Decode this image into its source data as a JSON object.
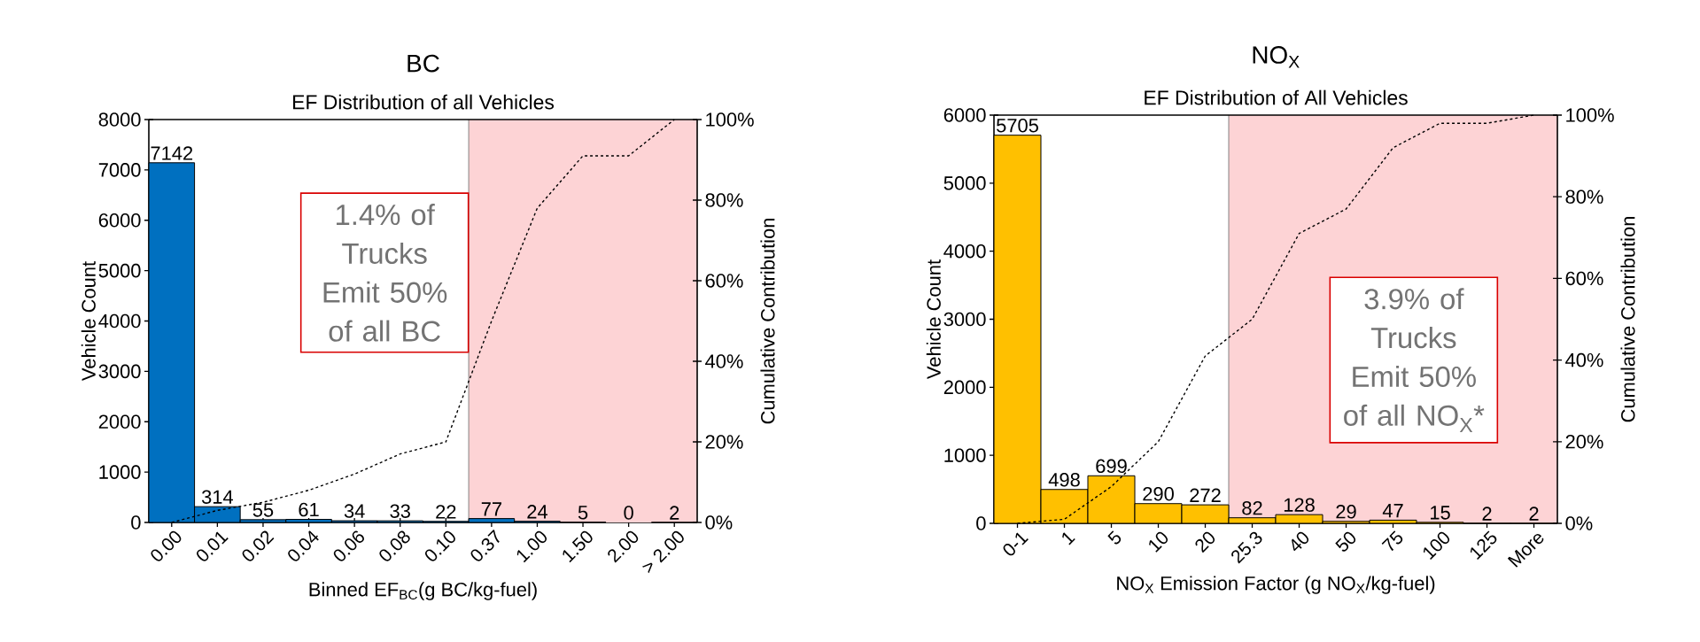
{
  "chart_data": [
    {
      "type": "bar",
      "title": "BC",
      "subtitle": "EF Distribution of all Vehicles",
      "xlabel": "Binned EF$_{BC}$(g BC/kg-fuel)",
      "ylabel": "Vehicle Count",
      "y2label": "Cumulative Contribution",
      "categories": [
        "0.00",
        "0.01",
        "0.02",
        "0.04",
        "0.06",
        "0.08",
        "0.10",
        "0.37",
        "1.00",
        "1.50",
        "2.00",
        "> 2.00"
      ],
      "series": [
        {
          "color": "#0070c0",
          "data_labels": true,
          "values": [
            7142,
            314,
            55,
            61,
            34,
            33,
            22,
            77,
            24,
            5,
            0,
            2
          ]
        },
        {
          "type": "line",
          "axis": "y2",
          "color": "#000000",
          "line_style": "dashed",
          "marker": "none",
          "values": [
            0,
            3,
            5,
            8,
            12,
            17,
            20,
            50,
            78,
            91,
            91,
            100
          ]
        }
      ],
      "ylim": [
        0,
        8000
      ],
      "yticks": [
        0,
        1000,
        2000,
        3000,
        4000,
        5000,
        6000,
        7000,
        8000
      ],
      "y2lim": [
        0,
        100
      ],
      "y2ticks": [
        {
          "value": 0,
          "label": "0%"
        },
        {
          "value": 20,
          "label": "20%"
        },
        {
          "value": 40,
          "label": "40%"
        },
        {
          "value": 60,
          "label": "60%"
        },
        {
          "value": 80,
          "label": "80%"
        },
        {
          "value": 100,
          "label": "100%"
        }
      ],
      "bands": [
        {
          "axis": "x",
          "from": "0.37",
          "to": "> 2.00",
          "color": "#fdd3d5"
        }
      ],
      "annotations": [
        "1.4% of Trucks Emit 50% of all BC"
      ]
    },
    {
      "type": "bar",
      "title": "NO$_{X}$",
      "subtitle": "EF Distribution of All Vehicles",
      "xlabel": "NO$_{X}$ Emission Factor (g NO$_{X}$/kg-fuel)",
      "ylabel": "Vehicle Count",
      "y2label": "Cumulative Contribution",
      "categories": [
        "0-1",
        "1",
        "5",
        "10",
        "20",
        "25.3",
        "40",
        "50",
        "75",
        "100",
        "125",
        "More"
      ],
      "series": [
        {
          "color": "#ffc000",
          "data_labels": true,
          "values": [
            5705,
            498,
            699,
            290,
            272,
            82,
            128,
            29,
            47,
            15,
            2,
            2
          ]
        },
        {
          "type": "line",
          "axis": "y2",
          "color": "#000000",
          "line_style": "dashed",
          "marker": "none",
          "values": [
            0,
            1,
            9,
            20,
            41,
            50,
            71,
            77,
            92,
            98,
            98,
            100
          ]
        }
      ],
      "ylim": [
        0,
        6000
      ],
      "yticks": [
        0,
        1000,
        2000,
        3000,
        4000,
        5000,
        6000
      ],
      "y2lim": [
        0,
        100
      ],
      "y2ticks": [
        {
          "value": 0,
          "label": "0%"
        },
        {
          "value": 20,
          "label": "20%"
        },
        {
          "value": 40,
          "label": "40%"
        },
        {
          "value": 60,
          "label": "60%"
        },
        {
          "value": 80,
          "label": "80%"
        },
        {
          "value": 100,
          "label": "100%"
        }
      ],
      "bands": [
        {
          "axis": "x",
          "from": "25.3",
          "to": "More",
          "color": "#fdd3d5"
        }
      ],
      "annotations": [
        "3.9% of Trucks Emit 50% of all NO$_{X}$*"
      ]
    }
  ]
}
